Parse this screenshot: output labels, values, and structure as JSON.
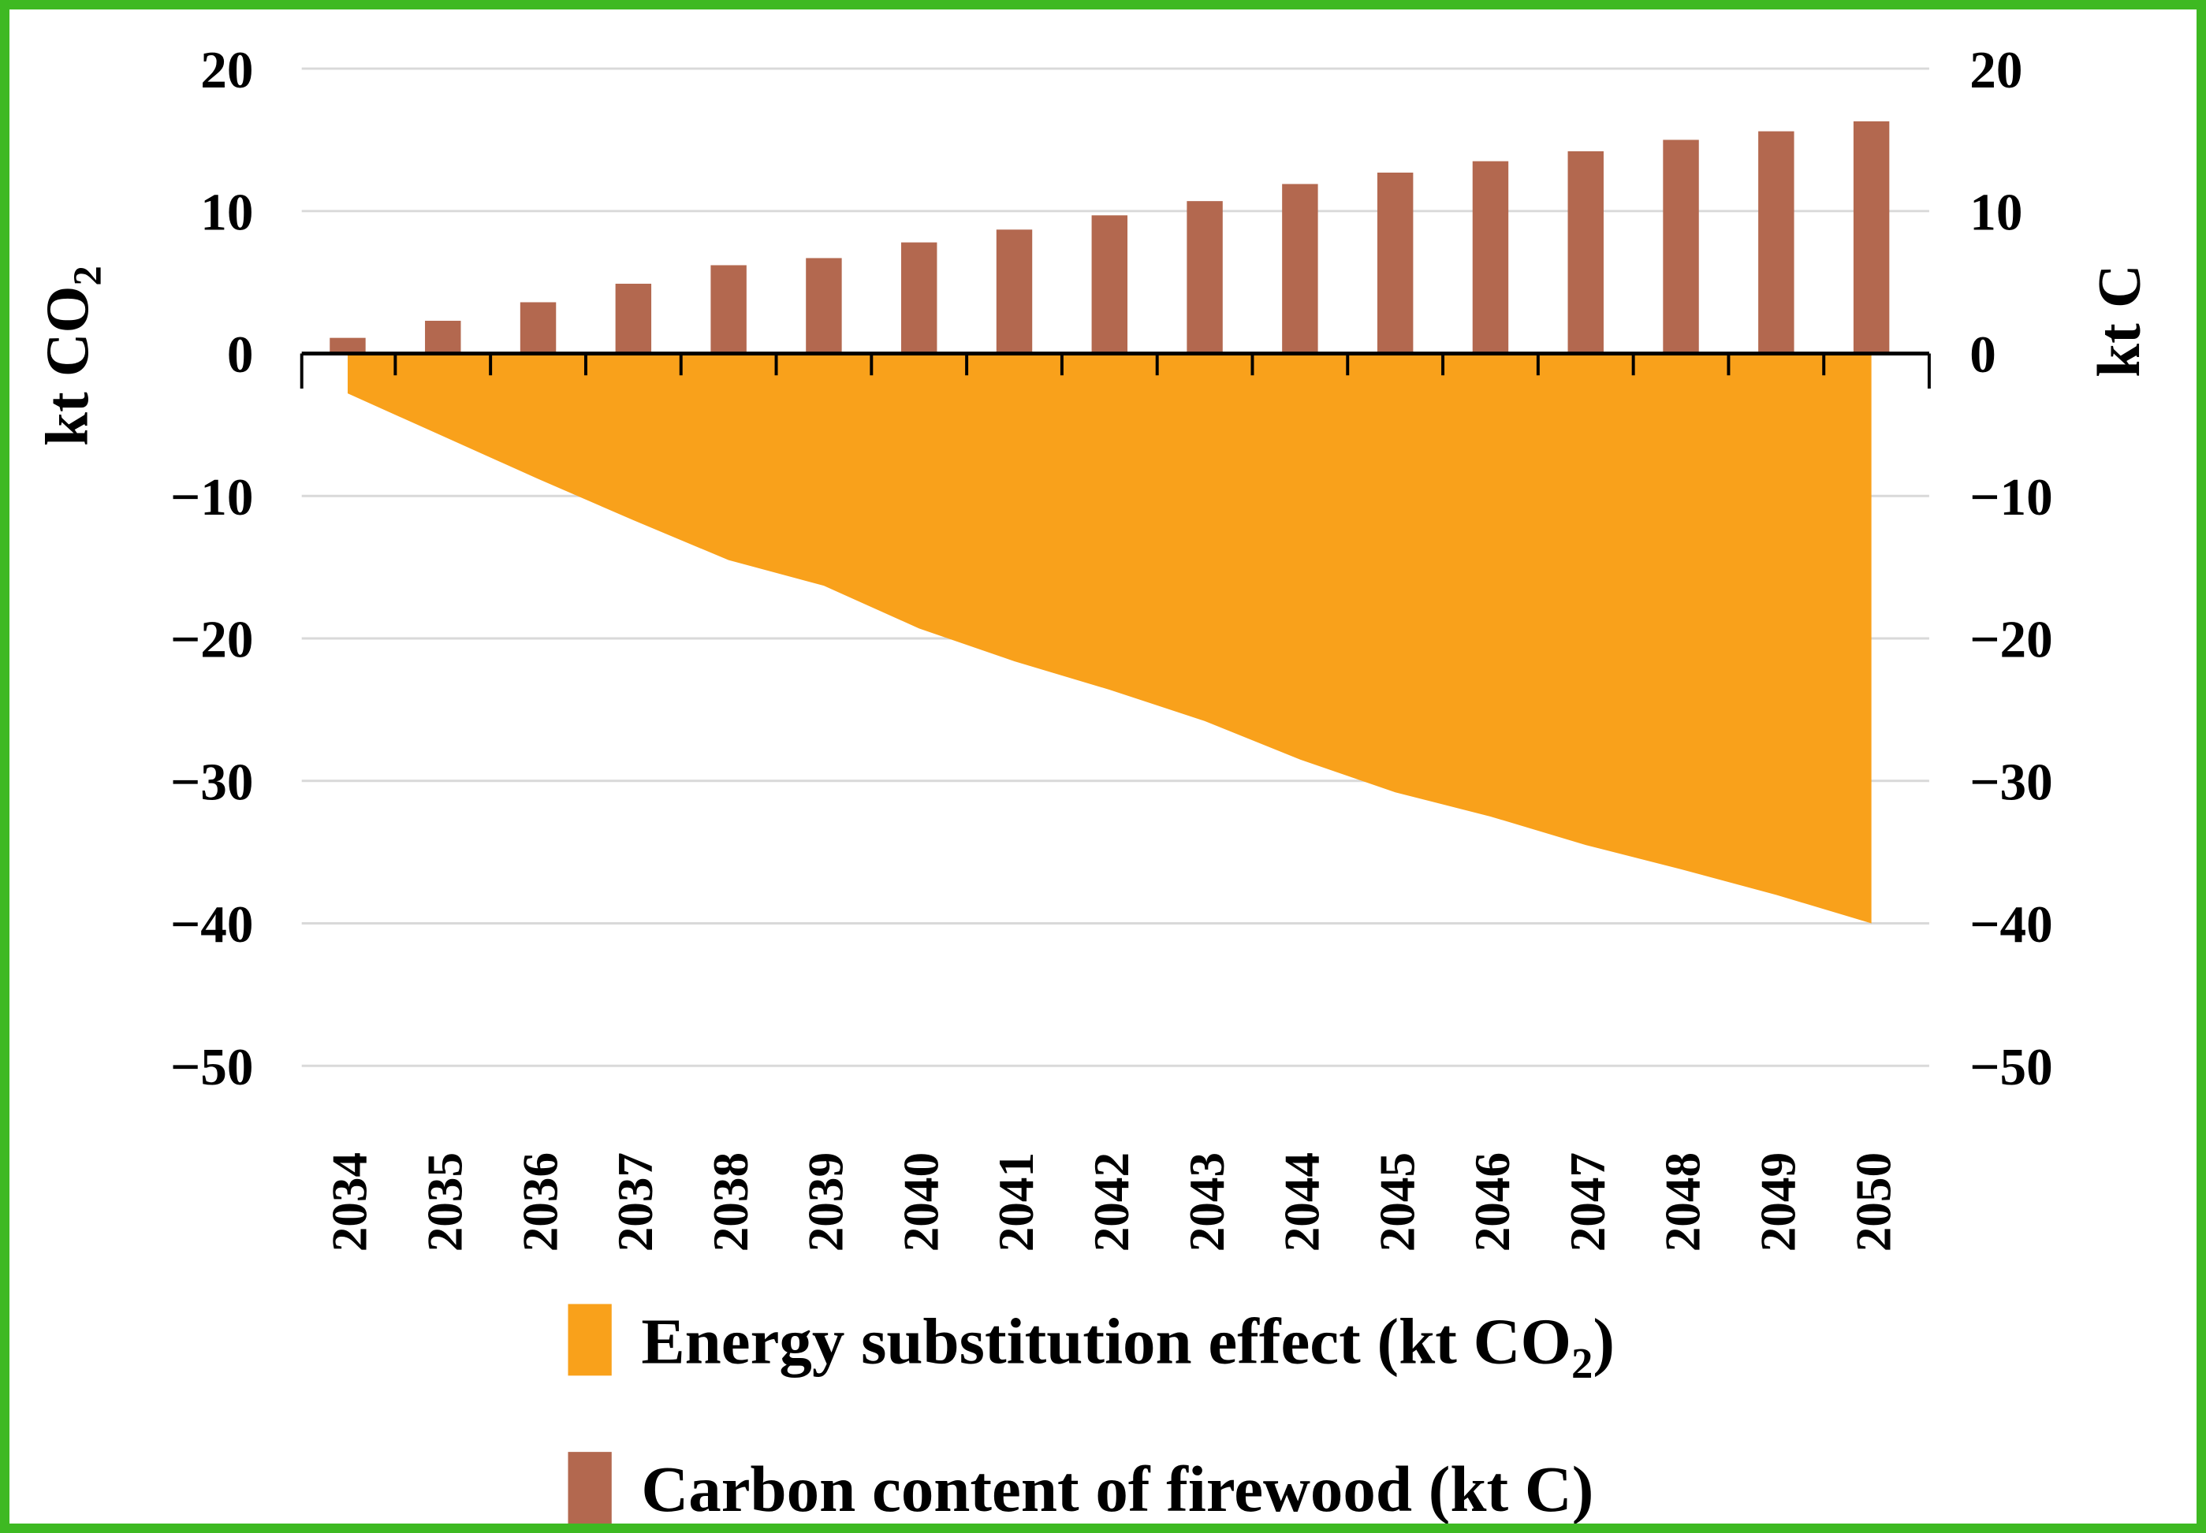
{
  "frame": {
    "border_color": "#3EB922",
    "background_color": "#FFFFFF"
  },
  "chart_data": {
    "type": "combo",
    "subtypes": [
      "area",
      "bar"
    ],
    "categories": [
      "2034",
      "2035",
      "2036",
      "2037",
      "2038",
      "2039",
      "2040",
      "2041",
      "2042",
      "2043",
      "2044",
      "2045",
      "2046",
      "2047",
      "2048",
      "2049",
      "2050"
    ],
    "series": [
      {
        "name": "Energy substitution effect (kt CO2)",
        "type": "area",
        "color": "#F9A11B",
        "axis": "left",
        "values": [
          -2.8,
          -5.8,
          -8.8,
          -11.7,
          -14.5,
          -16.3,
          -19.3,
          -21.6,
          -23.6,
          -25.8,
          -28.5,
          -30.8,
          -32.5,
          -34.5,
          -36.2,
          -38.0,
          -40.0
        ]
      },
      {
        "name": "Carbon content of firewood (kt C)",
        "type": "bar",
        "color": "#B3684F",
        "axis": "right",
        "values": [
          1.1,
          2.3,
          3.6,
          4.9,
          6.2,
          6.7,
          7.8,
          8.7,
          9.7,
          10.7,
          11.9,
          12.7,
          13.5,
          14.2,
          15.0,
          15.6,
          16.3
        ]
      }
    ],
    "left_axis": {
      "label": "kt CO2",
      "min": -50,
      "max": 20,
      "tick_step": 10,
      "tick_labels": [
        "20",
        "10",
        "0",
        "−10",
        "−20",
        "−30",
        "−40",
        "−50"
      ]
    },
    "right_axis": {
      "label": "kt C",
      "min": -50,
      "max": 20,
      "tick_step": 10,
      "tick_labels": [
        "20",
        "10",
        "0",
        "−10",
        "−20",
        "−30",
        "−40",
        "−50"
      ]
    },
    "grid": true,
    "legend_position": "bottom",
    "colors": {
      "gridline": "#D9D9D9",
      "axis_line": "#000000",
      "text": "#000000"
    }
  }
}
